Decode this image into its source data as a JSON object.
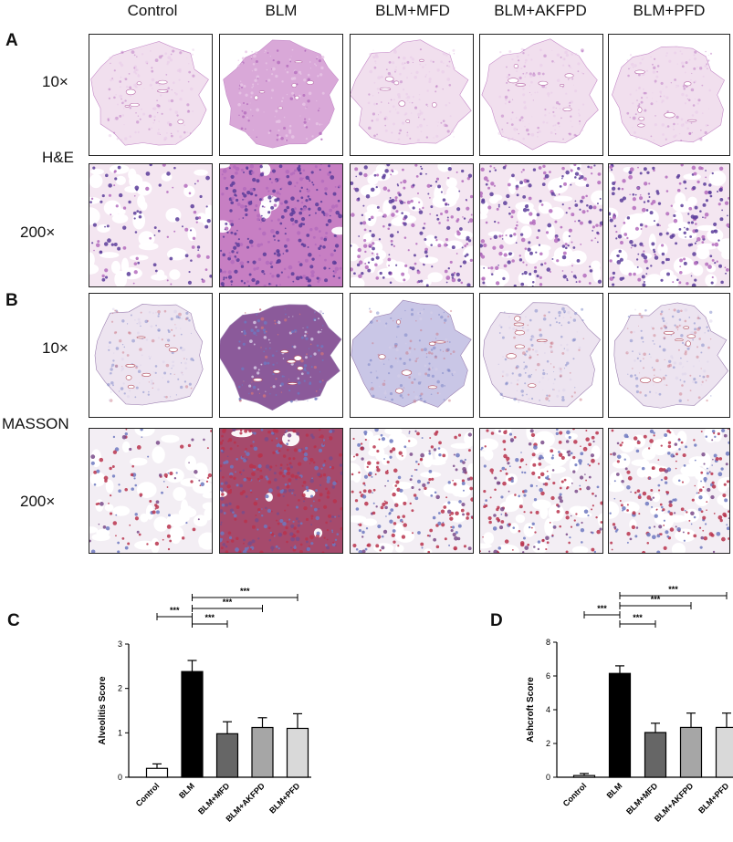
{
  "figure": {
    "columns": [
      "Control",
      "BLM",
      "BLM+MFD",
      "BLM+AKFPD",
      "BLM+PFD"
    ],
    "panel_letters": {
      "A": "A",
      "B": "B",
      "C": "C",
      "D": "D"
    },
    "stain_labels": {
      "he": "H&E",
      "masson": "MASSON"
    },
    "magnifications": {
      "low": "10×",
      "high": "200×"
    },
    "colors": {
      "he_light": "#f1dfee",
      "he_mid": "#d9a8d8",
      "he_dark": "#b36bbd",
      "he_nuclei": "#5a3c9a",
      "masson_light": "#ede4f0",
      "masson_blue": "#6d78c0",
      "masson_red": "#b8334c",
      "masson_dark": "#8b5a9a"
    }
  },
  "chart_data": [
    {
      "type": "bar",
      "panel": "C",
      "ylabel": "Alveolitis Score",
      "categories": [
        "Control",
        "BLM",
        "BLM+MFD",
        "BLM+AKFPD",
        "BLM+PFD"
      ],
      "values": [
        0.2,
        2.38,
        0.98,
        1.12,
        1.1
      ],
      "errors": [
        0.1,
        0.25,
        0.27,
        0.22,
        0.33
      ],
      "bar_colors": [
        "#ffffff",
        "#000000",
        "#666666",
        "#a6a6a6",
        "#d9d9d9"
      ],
      "ylim": [
        0,
        3
      ],
      "yticks": [
        0,
        1,
        2,
        3
      ],
      "significance": [
        {
          "from": 0,
          "to": 1,
          "label": "***"
        },
        {
          "from": 1,
          "to": 2,
          "label": "***"
        },
        {
          "from": 1,
          "to": 3,
          "label": "***"
        },
        {
          "from": 1,
          "to": 4,
          "label": "***"
        }
      ]
    },
    {
      "type": "bar",
      "panel": "D",
      "ylabel": "Ashcroft Score",
      "categories": [
        "Control",
        "BLM",
        "BLM+MFD",
        "BLM+AKFPD",
        "BLM+PFD"
      ],
      "values": [
        0.1,
        6.15,
        2.65,
        2.95,
        2.95
      ],
      "errors": [
        0.12,
        0.45,
        0.55,
        0.85,
        0.85
      ],
      "bar_colors": [
        "#ffffff",
        "#000000",
        "#666666",
        "#a6a6a6",
        "#d9d9d9"
      ],
      "ylim": [
        0,
        8
      ],
      "yticks": [
        0,
        2,
        4,
        6,
        8
      ],
      "significance": [
        {
          "from": 0,
          "to": 1,
          "label": "***"
        },
        {
          "from": 1,
          "to": 2,
          "label": "***"
        },
        {
          "from": 1,
          "to": 3,
          "label": "***"
        },
        {
          "from": 1,
          "to": 4,
          "label": "***"
        }
      ]
    }
  ]
}
